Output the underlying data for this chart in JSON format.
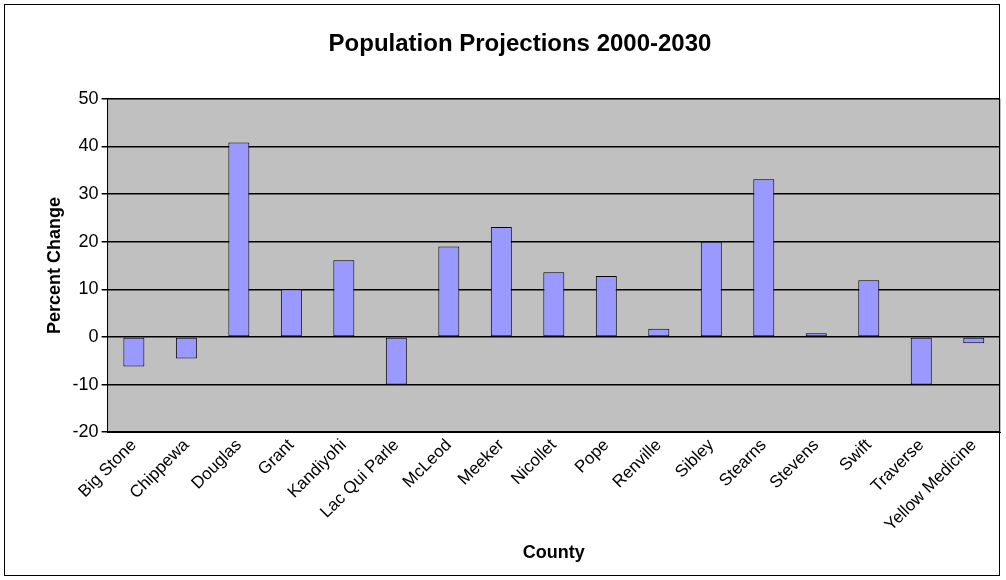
{
  "chart_data": {
    "type": "bar",
    "title": "Population Projections 2000-2030",
    "xlabel": "County",
    "ylabel": "Percent Change",
    "categories": [
      "Big Stone",
      "Chippewa",
      "Douglas",
      "Grant",
      "Kandiyohi",
      "Lac Qui Parle",
      "McLeod",
      "Meeker",
      "Nicollet",
      "Pope",
      "Renville",
      "Sibley",
      "Stearns",
      "Stevens",
      "Swift",
      "Traverse",
      "Yellow Medicine"
    ],
    "values": [
      -6.2,
      -4.5,
      40.8,
      10,
      16.1,
      -10,
      19,
      23.1,
      13.6,
      12.8,
      1.7,
      20,
      33.1,
      0.8,
      11.9,
      -10,
      -1.3
    ],
    "color": "#9999ff",
    "ylim": [
      -20,
      50
    ],
    "yticks": [
      -20,
      -10,
      0,
      10,
      20,
      30,
      40,
      50
    ],
    "grid": "y",
    "legend": false
  }
}
